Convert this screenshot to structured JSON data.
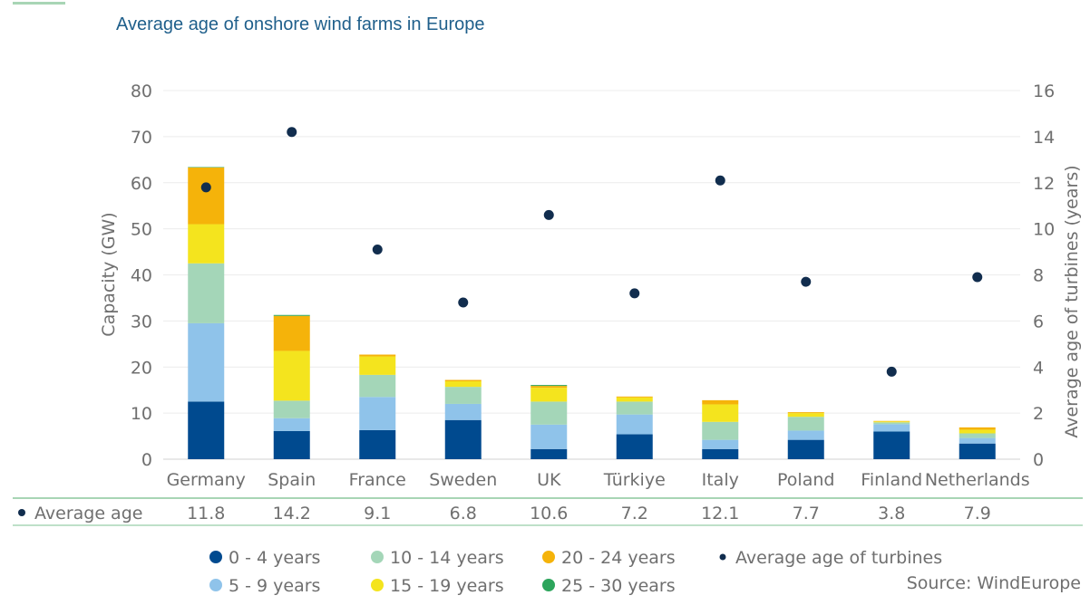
{
  "chart_data": {
    "type": "bar",
    "title": "Average age of onshore wind farms in Europe",
    "ylabel": "Capacity (GW)",
    "y2label": "Average age of turbines (years)",
    "ylim": [
      0,
      80
    ],
    "y2lim": [
      0,
      16
    ],
    "yticks": [
      0,
      10,
      20,
      30,
      40,
      50,
      60,
      70,
      80
    ],
    "y2ticks": [
      0,
      2,
      4,
      6,
      8,
      10,
      12,
      14,
      16
    ],
    "grid": true,
    "categories": [
      "Germany",
      "Spain",
      "France",
      "Sweden",
      "UK",
      "Türkiye",
      "Italy",
      "Poland",
      "Finland",
      "Netherlands"
    ],
    "series": [
      {
        "name": "0 - 4 years",
        "color": "#004a8f",
        "values": [
          12.5,
          6.1,
          6.3,
          8.5,
          2.2,
          5.4,
          2.2,
          4.2,
          6.0,
          3.4
        ]
      },
      {
        "name": "5 - 9 years",
        "color": "#8fc3ea",
        "values": [
          17.0,
          2.8,
          7.2,
          3.5,
          5.3,
          4.3,
          2.0,
          2.0,
          1.6,
          1.2
        ]
      },
      {
        "name": "10 - 14 years",
        "color": "#a4d6b8",
        "values": [
          13.0,
          3.8,
          4.8,
          3.7,
          5.0,
          2.8,
          3.9,
          3.0,
          0.4,
          1.0
        ]
      },
      {
        "name": "15 - 19 years",
        "color": "#f4e41e",
        "values": [
          8.5,
          10.8,
          4.0,
          1.2,
          3.0,
          0.9,
          3.8,
          0.8,
          0.2,
          0.8
        ]
      },
      {
        "name": "20 - 24 years",
        "color": "#f5b30a",
        "values": [
          12.3,
          7.6,
          0.4,
          0.3,
          0.4,
          0.2,
          0.9,
          0.2,
          0.1,
          0.5
        ]
      },
      {
        "name": "25 - 30 years",
        "color": "#2da55c",
        "values": [
          0.1,
          0.2,
          0.0,
          0.0,
          0.2,
          0.0,
          0.0,
          0.0,
          0.0,
          0.0
        ]
      }
    ],
    "line_series": {
      "name": "Average age of turbines",
      "color": "#112d4e",
      "axis": "right",
      "values": [
        11.8,
        14.2,
        9.1,
        6.8,
        10.6,
        7.2,
        12.1,
        7.7,
        3.8,
        7.9
      ]
    },
    "table": {
      "row_label": "Average age",
      "values": [
        "11.8",
        "14.2",
        "9.1",
        "6.8",
        "10.6",
        "7.2",
        "12.1",
        "7.7",
        "3.8",
        "7.9"
      ]
    },
    "legend_position": "bottom"
  },
  "source": "Source: WindEurope"
}
